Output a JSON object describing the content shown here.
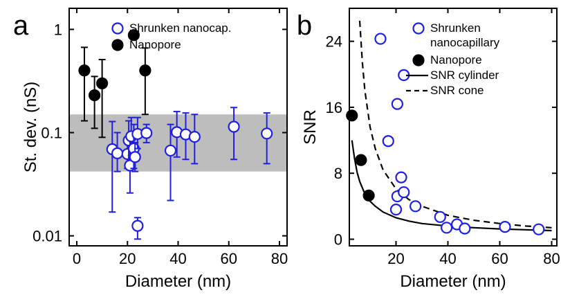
{
  "chart_data": [
    {
      "panel": "a",
      "type": "scatter",
      "xlabel": "Diameter (nm)",
      "ylabel": "St. dev. (nS)",
      "xlim": [
        -3,
        83
      ],
      "ylim": [
        0.008,
        1.6
      ],
      "yscale": "log",
      "xticks": [
        0,
        20,
        40,
        60,
        80
      ],
      "yticks": [
        0.01,
        0.1,
        1
      ],
      "ytick_labels": [
        "0.01",
        "0.1",
        "1"
      ],
      "legend_position": "top-right",
      "band": {
        "y0": 0.042,
        "y1": 0.15,
        "color": "#bdbdbd"
      },
      "series": [
        {
          "name": "Shrunken nanocap.",
          "color": "#1f1fe0",
          "marker": "open-circle",
          "points": [
            {
              "x": 14,
              "y": 0.069,
              "lo": 0.017,
              "hi": 0.128
            },
            {
              "x": 16,
              "y": 0.063,
              "lo": 0.042,
              "hi": 0.1
            },
            {
              "x": 20,
              "y": 0.062,
              "lo": 0.045,
              "hi": 0.09
            },
            {
              "x": 20.5,
              "y": 0.084,
              "lo": 0.05,
              "hi": 0.13
            },
            {
              "x": 21,
              "y": 0.048,
              "lo": 0.026,
              "hi": 0.095
            },
            {
              "x": 21.5,
              "y": 0.092,
              "lo": 0.06,
              "hi": 0.14
            },
            {
              "x": 22.5,
              "y": 0.07,
              "lo": 0.045,
              "hi": 0.12
            },
            {
              "x": 23,
              "y": 0.058,
              "lo": 0.042,
              "hi": 0.08
            },
            {
              "x": 24,
              "y": 0.097,
              "lo": 0.07,
              "hi": 0.14
            },
            {
              "x": 24,
              "y": 0.0125,
              "lo": 0.0093,
              "hi": 0.015
            },
            {
              "x": 27.5,
              "y": 0.099,
              "lo": 0.08,
              "hi": 0.12
            },
            {
              "x": 37,
              "y": 0.067,
              "lo": 0.022,
              "hi": 0.12
            },
            {
              "x": 39.5,
              "y": 0.101,
              "lo": 0.058,
              "hi": 0.16
            },
            {
              "x": 43,
              "y": 0.096,
              "lo": 0.055,
              "hi": 0.155
            },
            {
              "x": 46.5,
              "y": 0.091,
              "lo": 0.05,
              "hi": 0.15
            },
            {
              "x": 62,
              "y": 0.114,
              "lo": 0.055,
              "hi": 0.175
            },
            {
              "x": 75,
              "y": 0.098,
              "lo": 0.05,
              "hi": 0.155
            }
          ]
        },
        {
          "name": "Nanopore",
          "color": "#000000",
          "marker": "filled-circle",
          "points": [
            {
              "x": 3,
              "y": 0.4,
              "lo": 0.13,
              "hi": 0.67
            },
            {
              "x": 7,
              "y": 0.23,
              "lo": 0.11,
              "hi": 0.35
            },
            {
              "x": 10,
              "y": 0.3,
              "lo": 0.09,
              "hi": 0.51
            },
            {
              "x": 22.5,
              "y": 0.88,
              "lo": 0.88,
              "hi": 0.88
            },
            {
              "x": 27,
              "y": 0.4,
              "lo": 0.15,
              "hi": 0.66
            }
          ]
        }
      ]
    },
    {
      "panel": "b",
      "type": "scatter",
      "xlabel": "Diameter (nm)",
      "ylabel": "SNR",
      "xlim": [
        2,
        82
      ],
      "ylim": [
        -0.8,
        28
      ],
      "xticks": [
        20,
        40,
        60,
        80
      ],
      "yticks": [
        0,
        8,
        16,
        24
      ],
      "legend_position": "top-right",
      "series": [
        {
          "name": "Shrunken nanocapillary",
          "legend_lines": [
            "Shrunken",
            "nanocapillary"
          ],
          "color": "#1f1fe0",
          "marker": "open-circle",
          "points": [
            {
              "x": 14,
              "y": 24.3
            },
            {
              "x": 17,
              "y": 11.9
            },
            {
              "x": 20.5,
              "y": 16.4
            },
            {
              "x": 20,
              "y": 3.6
            },
            {
              "x": 20.5,
              "y": 5.2
            },
            {
              "x": 22,
              "y": 7.5
            },
            {
              "x": 23,
              "y": 19.9
            },
            {
              "x": 23,
              "y": 5.7
            },
            {
              "x": 27.5,
              "y": 4.0
            },
            {
              "x": 37,
              "y": 2.7
            },
            {
              "x": 39.5,
              "y": 1.4
            },
            {
              "x": 43.5,
              "y": 1.8
            },
            {
              "x": 46.5,
              "y": 1.3
            },
            {
              "x": 62,
              "y": 1.5
            },
            {
              "x": 75,
              "y": 1.2
            }
          ]
        },
        {
          "name": "Nanopore",
          "color": "#000000",
          "marker": "filled-circle",
          "points": [
            {
              "x": 3,
              "y": 15.0
            },
            {
              "x": 6.5,
              "y": 9.6
            },
            {
              "x": 9.5,
              "y": 5.3
            }
          ]
        },
        {
          "name": "SNR cylinder",
          "color": "#000000",
          "marker": "solid-line",
          "x": [
            3,
            4,
            5,
            6,
            8,
            10,
            12,
            15,
            20,
            25,
            30,
            40,
            50,
            60,
            70,
            80
          ],
          "y": [
            12.0,
            9.8,
            8.1,
            7.0,
            5.5,
            4.6,
            4.0,
            3.3,
            2.6,
            2.2,
            1.9,
            1.6,
            1.4,
            1.25,
            1.15,
            1.05
          ]
        },
        {
          "name": "SNR cone",
          "color": "#000000",
          "marker": "dashed-line",
          "x": [
            6,
            7,
            8,
            10,
            12,
            15,
            20,
            25,
            30,
            40,
            50,
            60,
            70,
            80
          ],
          "y": [
            26.5,
            21.5,
            18.0,
            13.6,
            11.0,
            8.4,
            6.1,
            4.8,
            4.0,
            2.9,
            2.3,
            1.9,
            1.6,
            1.4
          ]
        }
      ]
    }
  ]
}
